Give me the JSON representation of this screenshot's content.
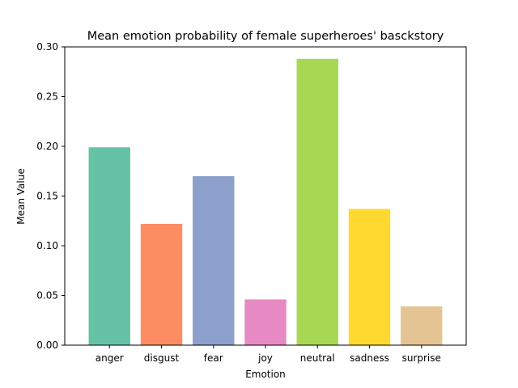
{
  "chart_data": {
    "type": "bar",
    "title": "Mean emotion probability of female superheroes' basckstory",
    "xlabel": "Emotion",
    "ylabel": "Mean Value",
    "categories": [
      "anger",
      "disgust",
      "fear",
      "joy",
      "neutral",
      "sadness",
      "surprise"
    ],
    "values": [
      0.199,
      0.122,
      0.17,
      0.046,
      0.288,
      0.137,
      0.039
    ],
    "colors": [
      "#66c2a5",
      "#fc8d62",
      "#8da0cb",
      "#e78ac3",
      "#a6d854",
      "#ffd92f",
      "#e5c494"
    ],
    "ylim": [
      0,
      0.3
    ],
    "yticks": [
      "0.00",
      "0.05",
      "0.10",
      "0.15",
      "0.20",
      "0.25",
      "0.30"
    ],
    "grid": false,
    "legend": "none"
  }
}
